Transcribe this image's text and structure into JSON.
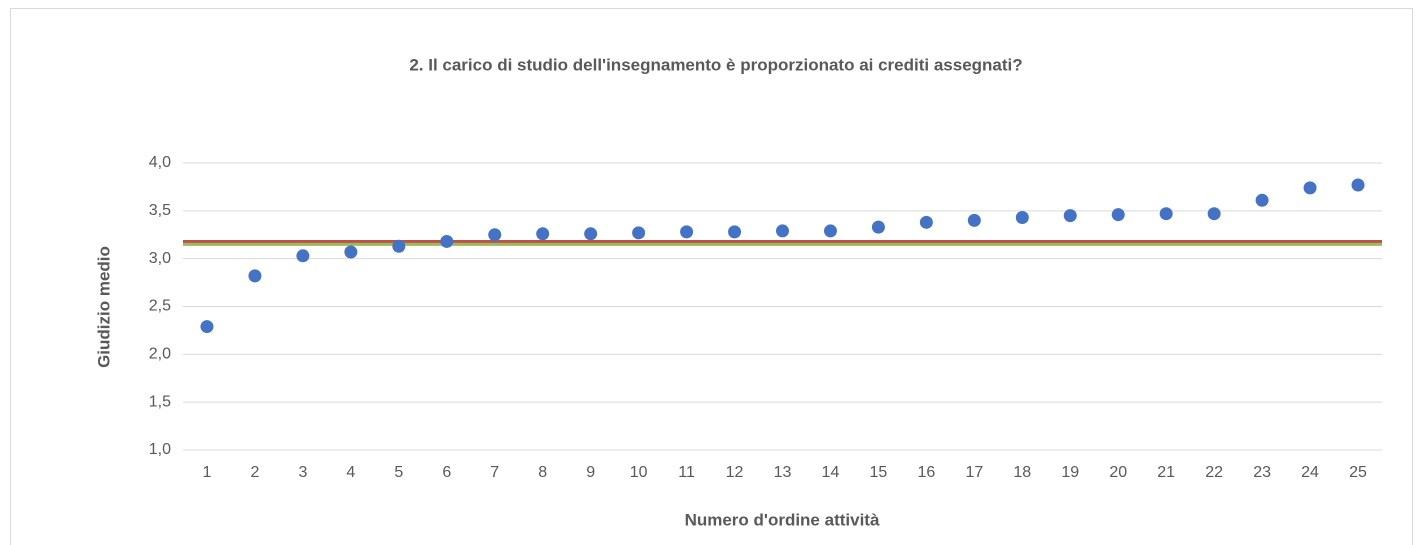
{
  "chart_data": {
    "type": "scatter",
    "title": "2. Il carico di studio dell'insegnamento è proporzionato ai crediti assegnati?",
    "x_label": "Numero d'ordine attività",
    "y_label": "Giudizio medio",
    "x": [
      1,
      2,
      3,
      4,
      5,
      6,
      7,
      8,
      9,
      10,
      11,
      12,
      13,
      14,
      15,
      16,
      17,
      18,
      19,
      20,
      21,
      22,
      23,
      24,
      25
    ],
    "series": [
      {
        "color": "#4472c4",
        "values": [
          2.29,
          2.82,
          3.03,
          3.07,
          3.13,
          3.18,
          3.25,
          3.26,
          3.26,
          3.27,
          3.28,
          3.28,
          3.29,
          3.29,
          3.33,
          3.38,
          3.4,
          3.43,
          3.45,
          3.46,
          3.47,
          3.47,
          3.61,
          3.74,
          3.77
        ]
      }
    ],
    "reference_lines": [
      {
        "value": 3.18,
        "color": "#c0504d"
      },
      {
        "value": 3.15,
        "color": "#9bbb59"
      }
    ],
    "xlim": [
      0.5,
      25.5
    ],
    "xticks": [
      1,
      2,
      3,
      4,
      5,
      6,
      7,
      8,
      9,
      10,
      11,
      12,
      13,
      14,
      15,
      16,
      17,
      18,
      19,
      20,
      21,
      22,
      23,
      24,
      25
    ],
    "ylim": [
      1,
      4
    ],
    "yticks": [
      {
        "value": 1,
        "label": "1,0"
      },
      {
        "value": 1.5,
        "label": "1,5"
      },
      {
        "value": 2,
        "label": "2,0"
      },
      {
        "value": 2.5,
        "label": "2,5"
      },
      {
        "value": 3,
        "label": "3,0"
      },
      {
        "value": 3.5,
        "label": "3,5"
      },
      {
        "value": 4,
        "label": "4,0"
      }
    ],
    "grid": true
  }
}
